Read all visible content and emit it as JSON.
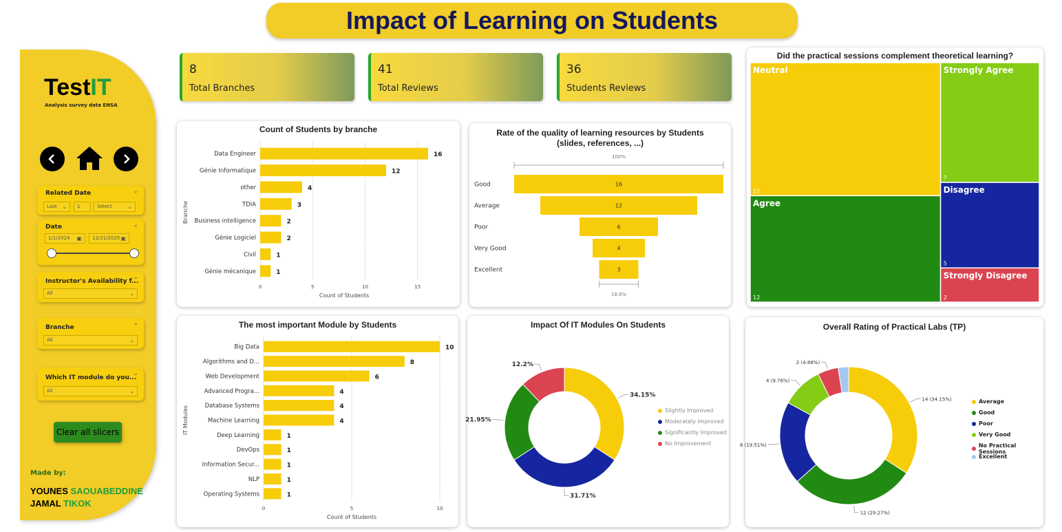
{
  "title": "Impact of Learning on Students",
  "sidebar": {
    "brand_main": "Test",
    "brand_accent": "IT",
    "brand_sub": "Analysis  survey data ENSA",
    "slicers": {
      "related_date": {
        "label": "Related Date",
        "period": "Last",
        "count": "1",
        "unit": "Select"
      },
      "date": {
        "label": "Date",
        "from": "1/1/2024",
        "to": "12/31/2025"
      },
      "instructor": {
        "label": "Instructor's Availability f...",
        "value": "All"
      },
      "branche": {
        "label": "Branche",
        "value": "All"
      },
      "module": {
        "label": "Which IT module do you...",
        "value": "All"
      }
    },
    "clear_label": "Clear all slicers",
    "made_by": "Made by:",
    "authors": [
      {
        "first": "YOUNES",
        "last": "SAOUABEDDINE"
      },
      {
        "first": "JAMAL",
        "last": "TIKOK"
      }
    ]
  },
  "kpis": [
    {
      "value": "8",
      "label": "Total Branches"
    },
    {
      "value": "41",
      "label": "Total Reviews"
    },
    {
      "value": "36",
      "label": "Students Reviews"
    }
  ],
  "colors": {
    "yellow": "#F7CD0A",
    "green": "#218A12",
    "lime": "#84CC16",
    "navy": "#1626A0",
    "red": "#DC4351",
    "lightblue": "#A3C8F2"
  },
  "chart_data": [
    {
      "type": "bar",
      "orientation": "horizontal",
      "title": "Count of Students by branche",
      "xlabel": "Count of Students",
      "ylabel": "Branche",
      "xlim": [
        0,
        16
      ],
      "xticks": [
        "0",
        "5",
        "10",
        "15"
      ],
      "categories": [
        "Data Engineer",
        "Génie Informatique",
        "other",
        "TDIA",
        "Business intelligence",
        "Génie Logiciel",
        "Civil",
        "Génie mécanique"
      ],
      "values": [
        16,
        12,
        4,
        3,
        2,
        2,
        1,
        1
      ]
    },
    {
      "type": "funnel",
      "title": "Rate of the quality of learning resources by Students (slides, references, ...)",
      "top_pct": "100%",
      "bottom_pct": "18.8%",
      "categories": [
        "Good",
        "Average",
        "Poor",
        "Very Good",
        "Excellent"
      ],
      "values": [
        16,
        12,
        6,
        4,
        3
      ]
    },
    {
      "type": "treemap",
      "title": "Did the practical sessions complement theoretical learning?",
      "categories": [
        "Neutral",
        "Agree",
        "Strongly Agree",
        "Disagree",
        "Strongly Disagree"
      ],
      "values": [
        15,
        12,
        7,
        5,
        2
      ]
    },
    {
      "type": "bar",
      "orientation": "horizontal",
      "title": "The most important Module by Students",
      "xlabel": "Count of Students",
      "ylabel": "IT Modules",
      "xlim": [
        0,
        10
      ],
      "xticks": [
        "0",
        "5",
        "10"
      ],
      "categories": [
        "Big Data",
        "Algorithms and D...",
        "Web Development",
        "Advanced Progra...",
        "Database Systems",
        "Machine Learning",
        "Deep Learning",
        "DevOps",
        "Information Secur...",
        "NLP",
        "Operating Systems"
      ],
      "values": [
        10,
        8,
        6,
        4,
        4,
        4,
        1,
        1,
        1,
        1,
        1
      ]
    },
    {
      "type": "pie",
      "donut": true,
      "title": "Impact Of IT Modules On Students",
      "categories": [
        "Slightly Improved",
        "Moderately Improved",
        "Significantly Improved",
        "No Improvement"
      ],
      "values": [
        34.15,
        31.71,
        21.95,
        12.2
      ],
      "labels": [
        "34.15%",
        "31.71%",
        "21.95%",
        "12.2%"
      ],
      "legend": "right"
    },
    {
      "type": "pie",
      "donut": true,
      "title": "Overall Rating of Practical Labs (TP)",
      "categories": [
        "Average",
        "Good",
        "Poor",
        "Very Good",
        "No Practical Sessions",
        "Excellent"
      ],
      "values": [
        14,
        12,
        8,
        4,
        2,
        1
      ],
      "labels": [
        "14 (34.15%)",
        "12 (29.27%)",
        "8 (19.51%)",
        "4 (9.76%)",
        "2 (4.88%)",
        ""
      ],
      "legend": "right"
    }
  ]
}
